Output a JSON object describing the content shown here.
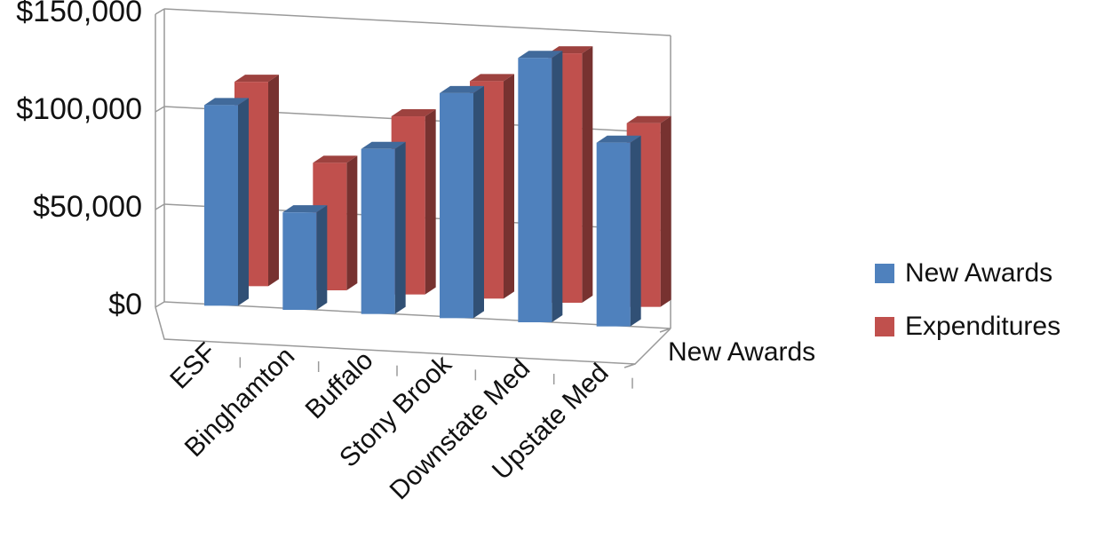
{
  "chart_data": {
    "type": "bar",
    "categories": [
      "ESF",
      "Binghamton",
      "Buffalo",
      "Stony Brook",
      "Downstate Med",
      "Upstate Med"
    ],
    "series": [
      {
        "name": "New Awards",
        "color": "#4F81BD",
        "values": [
          107000,
          52000,
          88000,
          120000,
          141000,
          98000
        ]
      },
      {
        "name": "Expenditures",
        "color": "#C0504D",
        "values": [
          109000,
          68000,
          95000,
          116000,
          133000,
          98000
        ]
      }
    ],
    "y_tick_labels": [
      "$0",
      "$50,000",
      "$100,000",
      "$150,000"
    ],
    "y_ticks": [
      0,
      50000,
      100000,
      150000
    ],
    "ylim": [
      0,
      150000
    ],
    "depth_axis_label": "New Awards",
    "legend_position": "right",
    "style": "3d-clustered-column",
    "grid": true
  }
}
